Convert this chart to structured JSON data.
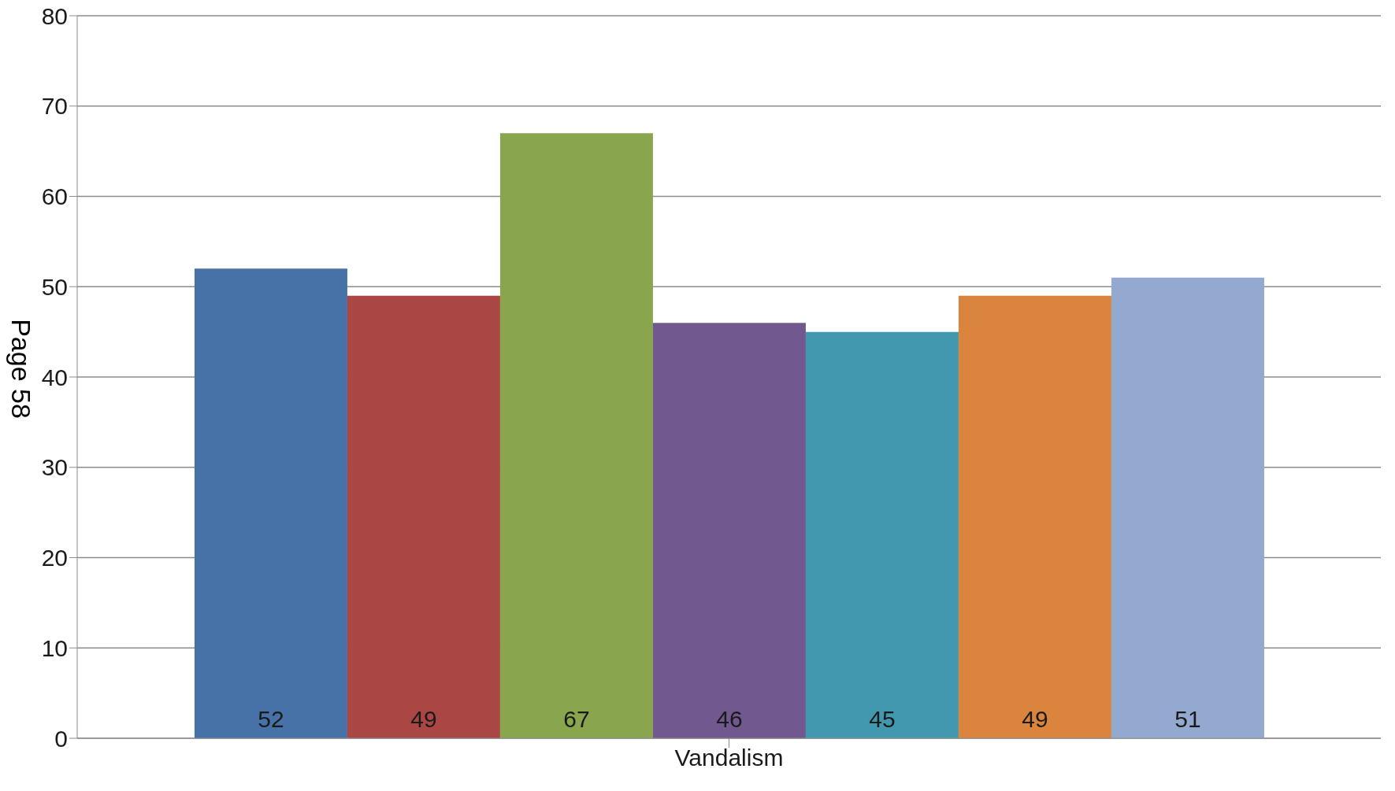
{
  "chart_data": {
    "type": "bar",
    "categories": [
      "Vandalism"
    ],
    "series": [
      {
        "color": "#4672a7",
        "values": [
          52
        ]
      },
      {
        "color": "#aa4744",
        "values": [
          49
        ]
      },
      {
        "color": "#89a54e",
        "values": [
          67
        ]
      },
      {
        "color": "#71588f",
        "values": [
          46
        ]
      },
      {
        "color": "#4198af",
        "values": [
          45
        ]
      },
      {
        "color": "#db843d",
        "values": [
          49
        ]
      },
      {
        "color": "#93a9cf",
        "values": [
          51
        ]
      }
    ],
    "ylim": [
      0,
      80
    ],
    "yticks": [
      0,
      10,
      20,
      30,
      40,
      50,
      60,
      70,
      80
    ],
    "grid": "y",
    "data_labels": true,
    "legend": false,
    "annotations": [
      "Page 58"
    ]
  }
}
